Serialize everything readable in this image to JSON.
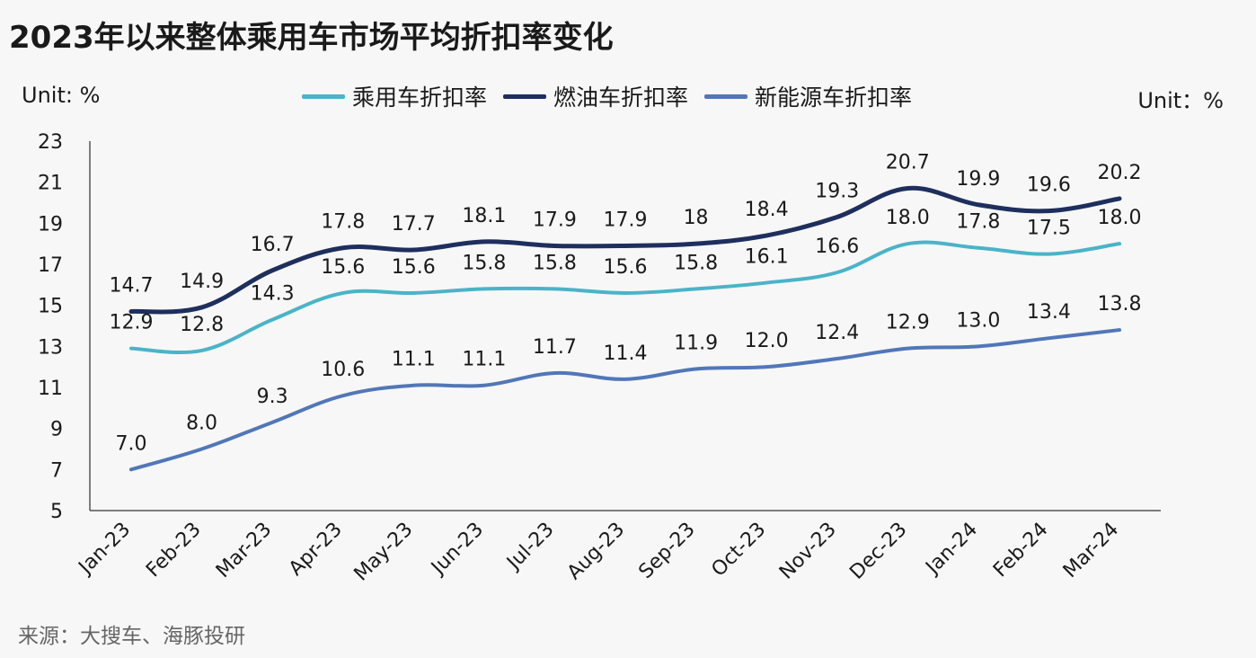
{
  "title": "2023年以来整体乘用车市场平均折扣率变化",
  "unit_left": "Unit: %",
  "unit_right": "Unit：%",
  "source": "来源：大搜车、海豚投研",
  "colors": {
    "passenger": "#4bb3c8",
    "fuel": "#1e2f5e",
    "nev": "#5177b8",
    "axis": "#555555"
  },
  "chart_data": {
    "type": "line",
    "title": "2023年以来整体乘用车市场平均折扣率变化",
    "xlabel": "",
    "ylabel": "Unit: %",
    "ylim": [
      5,
      23
    ],
    "yticks": [
      5,
      7,
      9,
      11,
      13,
      15,
      17,
      19,
      21,
      23
    ],
    "grid": false,
    "legend_position": "top-center",
    "categories": [
      "Jan-23",
      "Feb-23",
      "Mar-23",
      "Apr-23",
      "May-23",
      "Jun-23",
      "Jul-23",
      "Aug-23",
      "Sep-23",
      "Oct-23",
      "Nov-23",
      "Dec-23",
      "Jan-24",
      "Feb-24",
      "Mar-24"
    ],
    "series": [
      {
        "name": "乘用车折扣率",
        "color": "#4bb3c8",
        "values": [
          12.9,
          12.8,
          14.3,
          15.6,
          15.6,
          15.8,
          15.8,
          15.6,
          15.8,
          16.1,
          16.6,
          18.0,
          17.8,
          17.5,
          18.0
        ],
        "labels": [
          "12.9",
          "12.8",
          "14.3",
          "15.6",
          "15.6",
          "15.8",
          "15.8",
          "15.6",
          "15.8",
          "16.1",
          "16.6",
          "18.0",
          "17.8",
          "17.5",
          "18.0"
        ]
      },
      {
        "name": "燃油车折扣率",
        "color": "#1e2f5e",
        "values": [
          14.7,
          14.9,
          16.7,
          17.8,
          17.7,
          18.1,
          17.9,
          17.9,
          18,
          18.4,
          19.3,
          20.7,
          19.9,
          19.6,
          20.2
        ],
        "labels": [
          "14.7",
          "14.9",
          "16.7",
          "17.8",
          "17.7",
          "18.1",
          "17.9",
          "17.9",
          "18",
          "18.4",
          "19.3",
          "20.7",
          "19.9",
          "19.6",
          "20.2"
        ]
      },
      {
        "name": "新能源车折扣率",
        "color": "#5177b8",
        "values": [
          7.0,
          8.0,
          9.3,
          10.6,
          11.1,
          11.1,
          11.7,
          11.4,
          11.9,
          12.0,
          12.4,
          12.9,
          13.0,
          13.4,
          13.8
        ],
        "labels": [
          "7.0",
          "8.0",
          "9.3",
          "10.6",
          "11.1",
          "11.1",
          "11.7",
          "11.4",
          "11.9",
          "12.0",
          "12.4",
          "12.9",
          "13.0",
          "13.4",
          "13.8"
        ]
      }
    ]
  }
}
